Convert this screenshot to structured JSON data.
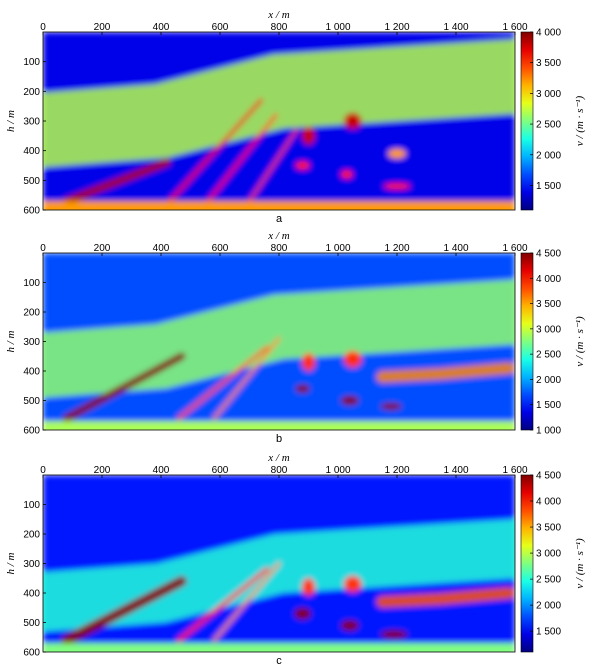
{
  "chart_data": [
    {
      "type": "heatmap",
      "panel_label": "a",
      "xlabel": "x / m",
      "ylabel": "h / m",
      "colorbar_label": "v / (m · s⁻¹)",
      "x_ticks": [
        "0",
        "200",
        "400",
        "600",
        "800",
        "1 000",
        "1 200",
        "1 400",
        "1 600"
      ],
      "y_ticks": [
        "100",
        "200",
        "300",
        "400",
        "500",
        "600"
      ],
      "xlim": [
        0,
        1600
      ],
      "ylim": [
        0,
        600
      ],
      "colorbar_range": [
        1100,
        4000
      ],
      "colorbar_ticks": [
        "4 000",
        "3 500",
        "3 000",
        "2 500",
        "2 000",
        "1 500"
      ],
      "colorbar_tick_values": [
        4000,
        3500,
        3000,
        2500,
        2000,
        1500
      ],
      "features": [
        {
          "kind": "layer",
          "x0": 0,
          "x1": 1600,
          "ytop": 0,
          "v": 1400
        },
        {
          "kind": "band",
          "points": [
            [
              0,
              330
            ],
            [
              400,
              300
            ],
            [
              800,
              200
            ],
            [
              1600,
              150
            ]
          ],
          "width": 250,
          "v": 2700
        },
        {
          "kind": "streak",
          "x0": 80,
          "y0": 570,
          "x1": 420,
          "y1": 440,
          "w": 25,
          "v": 3900
        },
        {
          "kind": "streak",
          "x0": 430,
          "y0": 570,
          "x1": 740,
          "y1": 230,
          "w": 12,
          "v": 3700
        },
        {
          "kind": "streak",
          "x0": 560,
          "y0": 570,
          "x1": 790,
          "y1": 280,
          "w": 10,
          "v": 3600
        },
        {
          "kind": "streak",
          "x0": 700,
          "y0": 570,
          "x1": 860,
          "y1": 330,
          "w": 9,
          "v": 3500
        },
        {
          "kind": "blob",
          "x": 900,
          "y": 350,
          "rx": 22,
          "ry": 30,
          "v": 3800
        },
        {
          "kind": "blob",
          "x": 1050,
          "y": 300,
          "rx": 30,
          "ry": 28,
          "v": 3800
        },
        {
          "kind": "blob",
          "x": 880,
          "y": 450,
          "rx": 24,
          "ry": 14,
          "v": 3600
        },
        {
          "kind": "blob",
          "x": 1030,
          "y": 480,
          "rx": 20,
          "ry": 14,
          "v": 3600
        },
        {
          "kind": "blob",
          "x": 1200,
          "y": 410,
          "rx": 30,
          "ry": 16,
          "v": 3200
        },
        {
          "kind": "blob",
          "x": 1200,
          "y": 520,
          "rx": 45,
          "ry": 10,
          "v": 3600
        },
        {
          "kind": "layer",
          "x0": 0,
          "x1": 1600,
          "ytop": 570,
          "v": 3200
        }
      ]
    },
    {
      "type": "heatmap",
      "panel_label": "b",
      "xlabel": "x / m",
      "ylabel": "h / m",
      "colorbar_label": "v / (m · s⁻¹)",
      "x_ticks": [
        "0",
        "200",
        "400",
        "600",
        "800",
        "1 000",
        "1 200",
        "1 400",
        "1 600"
      ],
      "y_ticks": [
        "100",
        "200",
        "300",
        "400",
        "500",
        "600"
      ],
      "xlim": [
        0,
        1600
      ],
      "ylim": [
        0,
        600
      ],
      "colorbar_range": [
        1000,
        4500
      ],
      "colorbar_ticks": [
        "4 500",
        "4 000",
        "3 500",
        "3 000",
        "2 500",
        "2 000",
        "1 500",
        "1 000"
      ],
      "colorbar_tick_values": [
        4500,
        4000,
        3500,
        3000,
        2500,
        2000,
        1500,
        1000
      ],
      "features": [
        {
          "kind": "layer",
          "x0": 0,
          "x1": 1600,
          "ytop": 0,
          "v": 1700
        },
        {
          "kind": "band",
          "points": [
            [
              0,
              380
            ],
            [
              400,
              350
            ],
            [
              800,
              250
            ],
            [
              1600,
              200
            ]
          ],
          "width": 220,
          "v": 2800
        },
        {
          "kind": "streak",
          "x0": 80,
          "y0": 560,
          "x1": 470,
          "y1": 350,
          "w": 25,
          "v": 4500
        },
        {
          "kind": "streak",
          "x0": 460,
          "y0": 560,
          "x1": 760,
          "y1": 320,
          "w": 12,
          "v": 3800
        },
        {
          "kind": "streak",
          "x0": 580,
          "y0": 560,
          "x1": 800,
          "y1": 290,
          "w": 10,
          "v": 3600
        },
        {
          "kind": "blob",
          "x": 900,
          "y": 370,
          "rx": 22,
          "ry": 30,
          "v": 3900
        },
        {
          "kind": "blob",
          "x": 1050,
          "y": 360,
          "rx": 30,
          "ry": 28,
          "v": 3900
        },
        {
          "kind": "blob",
          "x": 880,
          "y": 460,
          "rx": 24,
          "ry": 14,
          "v": 4500
        },
        {
          "kind": "blob",
          "x": 1040,
          "y": 500,
          "rx": 30,
          "ry": 16,
          "v": 4500
        },
        {
          "kind": "blob",
          "x": 1180,
          "y": 520,
          "rx": 35,
          "ry": 12,
          "v": 4500
        },
        {
          "kind": "band",
          "points": [
            [
              1150,
              420
            ],
            [
              1350,
              410
            ],
            [
              1580,
              390
            ]
          ],
          "width": 40,
          "v": 3600
        },
        {
          "kind": "layer",
          "x0": 0,
          "x1": 1600,
          "ytop": 570,
          "v": 2900
        }
      ]
    },
    {
      "type": "heatmap",
      "panel_label": "c",
      "xlabel": "x / m",
      "ylabel": "h / m",
      "colorbar_label": "v / (m · s⁻¹)",
      "x_ticks": [
        "0",
        "200",
        "400",
        "600",
        "800",
        "1 000",
        "1 200",
        "1 400",
        "1 600"
      ],
      "y_ticks": [
        "100",
        "200",
        "300",
        "400",
        "500",
        "600"
      ],
      "xlim": [
        0,
        1600
      ],
      "ylim": [
        0,
        600
      ],
      "colorbar_range": [
        1100,
        4500
      ],
      "colorbar_ticks": [
        "4 500",
        "4 000",
        "3 500",
        "3 000",
        "2 500",
        "2 000",
        "1 500"
      ],
      "colorbar_tick_values": [
        4500,
        4000,
        3500,
        3000,
        2500,
        2000,
        1500
      ],
      "features": [
        {
          "kind": "layer",
          "x0": 0,
          "x1": 1600,
          "ytop": 0,
          "v": 1600
        },
        {
          "kind": "band",
          "points": [
            [
              0,
              430
            ],
            [
              400,
              400
            ],
            [
              800,
              300
            ],
            [
              1600,
              250
            ]
          ],
          "width": 200,
          "v": 2500
        },
        {
          "kind": "streak",
          "x0": 80,
          "y0": 560,
          "x1": 470,
          "y1": 360,
          "w": 35,
          "v": 4500
        },
        {
          "kind": "streak",
          "x0": 460,
          "y0": 560,
          "x1": 760,
          "y1": 320,
          "w": 14,
          "v": 4000
        },
        {
          "kind": "streak",
          "x0": 580,
          "y0": 560,
          "x1": 800,
          "y1": 300,
          "w": 10,
          "v": 3600
        },
        {
          "kind": "blob",
          "x": 900,
          "y": 380,
          "rx": 22,
          "ry": 30,
          "v": 3900
        },
        {
          "kind": "blob",
          "x": 1050,
          "y": 370,
          "rx": 30,
          "ry": 28,
          "v": 3900
        },
        {
          "kind": "blob",
          "x": 880,
          "y": 470,
          "rx": 28,
          "ry": 20,
          "v": 4500
        },
        {
          "kind": "blob",
          "x": 1040,
          "y": 510,
          "rx": 30,
          "ry": 18,
          "v": 4500
        },
        {
          "kind": "blob",
          "x": 1190,
          "y": 540,
          "rx": 45,
          "ry": 14,
          "v": 4500
        },
        {
          "kind": "band",
          "points": [
            [
              1150,
              430
            ],
            [
              1350,
              420
            ],
            [
              1580,
              400
            ]
          ],
          "width": 40,
          "v": 3800
        },
        {
          "kind": "layer",
          "x0": 0,
          "x1": 1600,
          "ytop": 570,
          "v": 2800
        }
      ]
    }
  ]
}
